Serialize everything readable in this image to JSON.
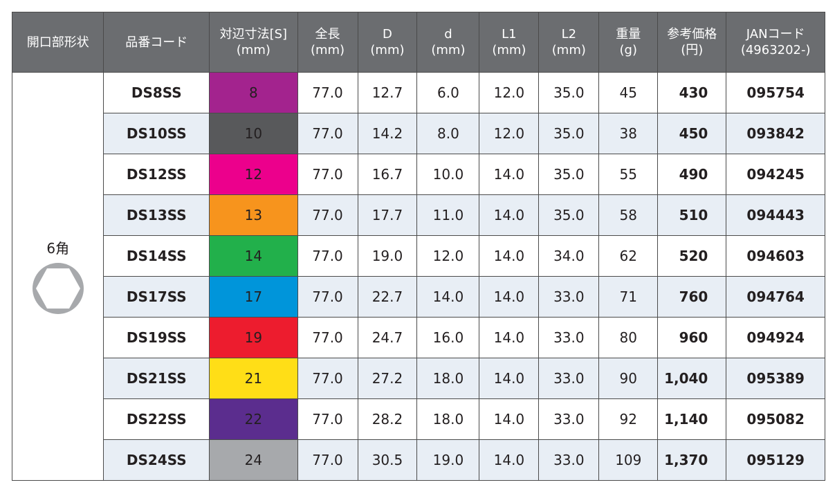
{
  "headers": [
    {
      "l1": "開口部形状",
      "l2": ""
    },
    {
      "l1": "品番コード",
      "l2": ""
    },
    {
      "l1": "対辺寸法[S]",
      "l2": "(mm)"
    },
    {
      "l1": "全長",
      "l2": "(mm)"
    },
    {
      "l1": "D",
      "l2": "(mm)"
    },
    {
      "l1": "d",
      "l2": "(mm)"
    },
    {
      "l1": "L1",
      "l2": "(mm)"
    },
    {
      "l1": "L2",
      "l2": "(mm)"
    },
    {
      "l1": "重量",
      "l2": "(g)"
    },
    {
      "l1": "参考価格",
      "l2": "(円)"
    },
    {
      "l1": "JANコード",
      "l2": "(4963202-)"
    }
  ],
  "shape": {
    "label": "6角",
    "icon": "hexagon-icon",
    "color": "#a7a9ac"
  },
  "rows": [
    {
      "code": "DS8SS",
      "size": "8",
      "size_color": "#a3238e",
      "length": "77.0",
      "D": "12.7",
      "d": "6.0",
      "L1": "12.0",
      "L2": "35.0",
      "weight": "45",
      "price": "430",
      "jan": "095754"
    },
    {
      "code": "DS10SS",
      "size": "10",
      "size_color": "#58595b",
      "length": "77.0",
      "D": "14.2",
      "d": "8.0",
      "L1": "12.0",
      "L2": "35.0",
      "weight": "38",
      "price": "450",
      "jan": "093842"
    },
    {
      "code": "DS12SS",
      "size": "12",
      "size_color": "#ec008c",
      "length": "77.0",
      "D": "16.7",
      "d": "10.0",
      "L1": "14.0",
      "L2": "35.0",
      "weight": "55",
      "price": "490",
      "jan": "094245"
    },
    {
      "code": "DS13SS",
      "size": "13",
      "size_color": "#f7941d",
      "length": "77.0",
      "D": "17.7",
      "d": "11.0",
      "L1": "14.0",
      "L2": "35.0",
      "weight": "58",
      "price": "510",
      "jan": "094443"
    },
    {
      "code": "DS14SS",
      "size": "14",
      "size_color": "#22b04b",
      "length": "77.0",
      "D": "19.0",
      "d": "12.0",
      "L1": "14.0",
      "L2": "34.0",
      "weight": "62",
      "price": "520",
      "jan": "094603"
    },
    {
      "code": "DS17SS",
      "size": "17",
      "size_color": "#0095da",
      "length": "77.0",
      "D": "22.7",
      "d": "14.0",
      "L1": "14.0",
      "L2": "33.0",
      "weight": "71",
      "price": "760",
      "jan": "094764"
    },
    {
      "code": "DS19SS",
      "size": "19",
      "size_color": "#ed1c2e",
      "length": "77.0",
      "D": "24.7",
      "d": "16.0",
      "L1": "14.0",
      "L2": "33.0",
      "weight": "80",
      "price": "960",
      "jan": "094924"
    },
    {
      "code": "DS21SS",
      "size": "21",
      "size_color": "#ffde17",
      "length": "77.0",
      "D": "27.2",
      "d": "18.0",
      "L1": "14.0",
      "L2": "33.0",
      "weight": "90",
      "price": "1,040",
      "jan": "095389"
    },
    {
      "code": "DS22SS",
      "size": "22",
      "size_color": "#5b2d8e",
      "length": "77.0",
      "D": "28.2",
      "d": "18.0",
      "L1": "14.0",
      "L2": "33.0",
      "weight": "92",
      "price": "1,140",
      "jan": "095082"
    },
    {
      "code": "DS24SS",
      "size": "24",
      "size_color": "#a7a9ac",
      "length": "77.0",
      "D": "30.5",
      "d": "19.0",
      "L1": "14.0",
      "L2": "33.0",
      "weight": "109",
      "price": "1,370",
      "jan": "095129"
    }
  ]
}
